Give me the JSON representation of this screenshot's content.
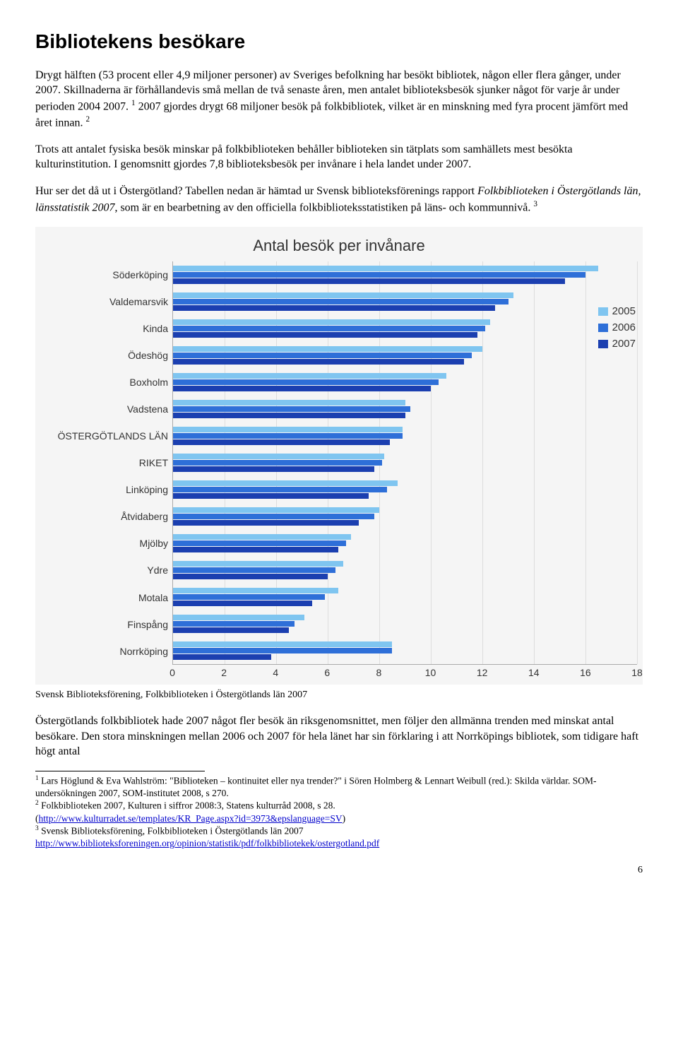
{
  "title": "Bibliotekens besökare",
  "para1": "Drygt hälften (53 procent eller 4,9 miljoner personer) av Sveriges befolkning har besökt bibliotek, någon eller flera gånger, under 2007. Skillnaderna är förhållandevis små mellan de två senaste åren, men antalet biblioteksbesök sjunker något för varje år under perioden 2004 2007. ",
  "sup1": "1",
  "para1b": " 2007 gjordes drygt 68 miljoner besök på folkbibliotek, vilket är en minskning med fyra procent jämfört med året innan. ",
  "sup2": "2",
  "para2": "Trots att antalet fysiska besök minskar på folkbiblioteken behåller biblioteken sin tätplats som samhällets mest besökta kulturinstitution. I genomsnitt gjordes 7,8 biblioteksbesök per invånare i hela landet under 2007.",
  "para3a": "Hur ser det då ut i Östergötland? Tabellen nedan är hämtad ur Svensk biblioteksförenings rapport ",
  "para3i": "Folkbiblioteken i Östergötlands län, länsstatistik 2007",
  "para3b": ", som är en bearbetning av den officiella folkbiblioteksstatistiken på läns- och kommunnivå. ",
  "sup3": "3",
  "chart": {
    "title": "Antal besök per invånare",
    "xmax": 18,
    "xticks": [
      0,
      2,
      4,
      6,
      8,
      10,
      12,
      14,
      16,
      18
    ],
    "categories": [
      "Söderköping",
      "Valdemarsvik",
      "Kinda",
      "Ödeshög",
      "Boxholm",
      "Vadstena",
      "ÖSTERGÖTLANDS LÄN",
      "RIKET",
      "Linköping",
      "Åtvidaberg",
      "Mjölby",
      "Ydre",
      "Motala",
      "Finspång",
      "Norrköping"
    ],
    "series": [
      {
        "name": "2005",
        "color": "#7fc5f0"
      },
      {
        "name": "2006",
        "color": "#2e6fd8"
      },
      {
        "name": "2007",
        "color": "#1b3fb0"
      }
    ],
    "values": [
      [
        16.5,
        16.0,
        15.2
      ],
      [
        13.2,
        13.0,
        12.5
      ],
      [
        12.3,
        12.1,
        11.8
      ],
      [
        12.0,
        11.6,
        11.3
      ],
      [
        10.6,
        10.3,
        10.0
      ],
      [
        9.0,
        9.2,
        9.0
      ],
      [
        8.9,
        8.9,
        8.4
      ],
      [
        8.2,
        8.1,
        7.8
      ],
      [
        8.7,
        8.3,
        7.6
      ],
      [
        8.0,
        7.8,
        7.2
      ],
      [
        6.9,
        6.7,
        6.4
      ],
      [
        6.6,
        6.3,
        6.0
      ],
      [
        6.4,
        5.9,
        5.4
      ],
      [
        5.1,
        4.7,
        4.5
      ],
      [
        8.5,
        8.5,
        3.8
      ]
    ],
    "background": "#f5f5f5",
    "grid_color": "#dddddd",
    "label_font": "Arial",
    "label_size": 14
  },
  "caption": "Svensk Biblioteksförening, Folkbiblioteken i Östergötlands län 2007",
  "para4": "Östergötlands folkbibliotek hade 2007 något fler besök än riksgenomsnittet, men följer den allmänna trenden med minskat antal besökare. Den stora minskningen mellan 2006 och 2007 för hela länet har sin förklaring i att Norrköpings bibliotek, som tidigare haft högt antal",
  "fn1a": " Lars Höglund & Eva Wahlström: \"Biblioteken – kontinuitet eller nya trender?\" i Sören Holmberg & Lennart Weibull (red.): Skilda världar. SOM-undersökningen 2007, SOM-institutet 2008, s 270.",
  "fn2a": " Folkbiblioteken 2007, Kulturen i siffror 2008:3, Statens kulturråd 2008, s 28.",
  "fn2link": "http://www.kulturradet.se/templates/KR_Page.aspx?id=3973&epslanguage=SV",
  "fn3a": " Svensk Biblioteksförening, Folkbiblioteken i Östergötlands län 2007",
  "fn3link": "http://www.biblioteksforeningen.org/opinion/statistik/pdf/folkbibliotekek/ostergotland.pdf",
  "pagenum": "6"
}
